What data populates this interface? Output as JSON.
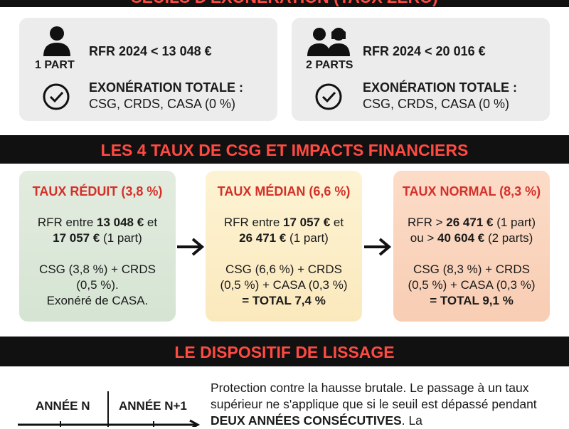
{
  "seuils": {
    "title": "SEUILS D'EXONÉRATION (TAUX ZÉRO)",
    "cards": [
      {
        "parts": "1 PART",
        "rfr": "RFR 2024 < 13 048 €",
        "exo_title": "EXONÉRATION TOTALE :",
        "exo_text": "CSG, CRDS, CASA (0 %)"
      },
      {
        "parts": "2 PARTS",
        "rfr": "RFR 2024 < 20 016 €",
        "exo_title": "EXONÉRATION TOTALE :",
        "exo_text": "CSG, CRDS, CASA (0 %)"
      }
    ]
  },
  "taux": {
    "title": "LES 4 TAUX DE CSG ET IMPACTS FINANCIERS",
    "cards": [
      {
        "title": "TAUX RÉDUIT (3,8 %)",
        "rfr": [
          "RFR entre ",
          "13 048 €",
          " et",
          "17 057 €",
          " (1 part)"
        ],
        "detail": [
          "CSG (3,8 %) + CRDS",
          "(0,5 %).",
          "Exonéré de CASA."
        ]
      },
      {
        "title": "TAUX MÉDIAN (6,6 %)",
        "rfr": [
          "RFR entre ",
          "17 057 €",
          " et",
          "26 471 €",
          " (1 part)"
        ],
        "detail": [
          "CSG (6,6 %) + CRDS",
          "(0,5 %) + CASA (0,3 %)"
        ],
        "total": "= TOTAL 7,4 %"
      },
      {
        "title": "TAUX NORMAL (8,3 %)",
        "rfr": [
          "RFR > ",
          "26 471 €",
          " (1 part)",
          "ou > ",
          "40 604 €",
          " (2 parts)"
        ],
        "detail": [
          "CSG (8,3 %) + CRDS",
          "(0,5 %) + CASA (0,3 %)"
        ],
        "total": "= TOTAL 9,1 %"
      }
    ]
  },
  "lissage": {
    "title": "LE DISPOSITIF DE LISSAGE",
    "timeline": [
      "ANNÉE N",
      "ANNÉE N+1"
    ],
    "text": [
      "Protection contre la hausse brutale. Le passage à un taux supérieur ne s'applique que si le seuil est dépassé pendant ",
      "DEUX ANNÉES CONSÉCUTIVES",
      ". La"
    ]
  }
}
